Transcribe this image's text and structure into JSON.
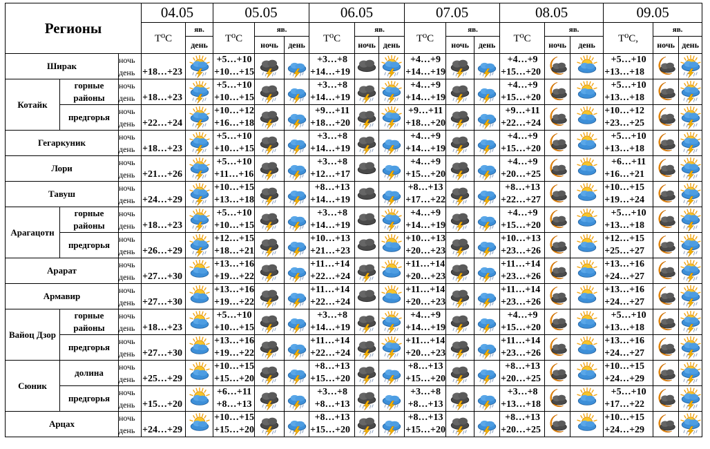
{
  "header": {
    "title": "Регионы",
    "dates": [
      "04.05",
      "05.05",
      "06.05",
      "07.05",
      "08.05",
      "09.05"
    ],
    "temp_labels": [
      "T⁰C",
      "T⁰C",
      "T⁰C",
      "T⁰C",
      "T⁰C",
      "T⁰C,"
    ],
    "phen_label": "яв.",
    "night": "ночь",
    "day": "день"
  },
  "row_labels": {
    "night": "ночь",
    "day": "день"
  },
  "regions": [
    {
      "name": "Ширак",
      "subs": [
        {
          "name": ""
        }
      ]
    },
    {
      "name": "Котайк",
      "subs": [
        {
          "name": "горные районы"
        },
        {
          "name": "предгорья"
        }
      ]
    },
    {
      "name": "Гегаркуник",
      "subs": [
        {
          "name": ""
        }
      ]
    },
    {
      "name": "Лори",
      "subs": [
        {
          "name": ""
        }
      ]
    },
    {
      "name": "Тавуш",
      "subs": [
        {
          "name": ""
        }
      ]
    },
    {
      "name": "Арагацотн",
      "subs": [
        {
          "name": "горные районы"
        },
        {
          "name": "предгорья"
        }
      ]
    },
    {
      "name": "Арарат",
      "subs": [
        {
          "name": ""
        }
      ]
    },
    {
      "name": "Армавир",
      "subs": [
        {
          "name": ""
        }
      ]
    },
    {
      "name": "Вайоц Дзор",
      "subs": [
        {
          "name": "горные районы"
        },
        {
          "name": "предгорья"
        }
      ]
    },
    {
      "name": "Сюник",
      "subs": [
        {
          "name": "долина"
        },
        {
          "name": "предгорья"
        }
      ]
    },
    {
      "name": "Арцах",
      "subs": [
        {
          "name": ""
        }
      ]
    }
  ],
  "rows": [
    {
      "d04": {
        "day": "+18…+23",
        "icon": "sun-storm-icon"
      },
      "days": [
        {
          "night": "+5…+10",
          "day": "+10…+15",
          "icons": [
            "storm-cloud-icon",
            "blue-storm-icon"
          ]
        },
        {
          "night": "+3…+8",
          "day": "+14…+19",
          "icons": [
            "dark-cloud-icon",
            "sun-storm-icon"
          ]
        },
        {
          "night": "+4…+9",
          "day": "+14…+19",
          "icons": [
            "storm-cloud-icon",
            "blue-storm-icon"
          ]
        },
        {
          "night": "+4…+9",
          "day": "+15…+20",
          "icons": [
            "moon-cloud-icon",
            "sun-cloud-icon"
          ]
        },
        {
          "night": "+5…+10",
          "day": "+13…+18",
          "icons": [
            "moon-cloud-icon",
            "sun-storm-icon"
          ]
        }
      ]
    },
    {
      "d04": {
        "day": "+18…+23",
        "icon": "sun-storm-icon"
      },
      "days": [
        {
          "night": "+5…+10",
          "day": "+10…+15",
          "icons": [
            "storm-cloud-icon",
            "blue-storm-icon"
          ]
        },
        {
          "night": "+3…+8",
          "day": "+14…+19",
          "icons": [
            "storm-cloud-icon",
            "sun-storm-icon"
          ]
        },
        {
          "night": "+4…+9",
          "day": "+14…+19",
          "icons": [
            "storm-cloud-icon",
            "blue-storm-icon"
          ]
        },
        {
          "night": "+4…+9",
          "day": "+15…+20",
          "icons": [
            "moon-cloud-icon",
            "sun-cloud-icon"
          ]
        },
        {
          "night": "+5…+10",
          "day": "+13…+18",
          "icons": [
            "moon-cloud-icon",
            "sun-storm-icon"
          ]
        }
      ]
    },
    {
      "d04": {
        "day": "+22…+24",
        "icon": "sun-storm-icon"
      },
      "days": [
        {
          "night": "+10…+12",
          "day": "+16…+18",
          "icons": [
            "storm-cloud-icon",
            "blue-storm-icon"
          ]
        },
        {
          "night": "+9…+11",
          "day": "+18…+20",
          "icons": [
            "storm-cloud-icon",
            "sun-storm-icon"
          ]
        },
        {
          "night": "+9…+11",
          "day": "+18…+20",
          "icons": [
            "storm-cloud-icon",
            "blue-storm-icon"
          ]
        },
        {
          "night": "+9…+11",
          "day": "+22…+24",
          "icons": [
            "moon-cloud-icon",
            "sun-cloud-icon"
          ]
        },
        {
          "night": "+10…+12",
          "day": "+23…+25",
          "icons": [
            "moon-cloud-icon",
            "sun-storm-icon"
          ]
        }
      ]
    },
    {
      "d04": {
        "day": "+18…+23",
        "icon": "sun-storm-icon"
      },
      "days": [
        {
          "night": "+5…+10",
          "day": "+10…+15",
          "icons": [
            "storm-cloud-icon",
            "blue-storm-icon"
          ]
        },
        {
          "night": "+3…+8",
          "day": "+14…+19",
          "icons": [
            "storm-cloud-icon",
            "blue-storm-icon"
          ]
        },
        {
          "night": "+4…+9",
          "day": "+14…+19",
          "icons": [
            "storm-cloud-icon",
            "blue-storm-icon"
          ]
        },
        {
          "night": "+4…+9",
          "day": "+15…+20",
          "icons": [
            "moon-cloud-icon",
            "sun-cloud-icon"
          ]
        },
        {
          "night": "+5…+10",
          "day": "+13…+18",
          "icons": [
            "moon-cloud-icon",
            "sun-storm-icon"
          ]
        }
      ]
    },
    {
      "d04": {
        "day": "+21…+26",
        "icon": "sun-storm-icon"
      },
      "days": [
        {
          "night": "+5…+10",
          "day": "+11…+16",
          "icons": [
            "storm-cloud-icon",
            "blue-storm-icon"
          ]
        },
        {
          "night": "+3…+8",
          "day": "+12…+17",
          "icons": [
            "dark-cloud-icon",
            "blue-storm-icon"
          ]
        },
        {
          "night": "+4…+9",
          "day": "+15…+20",
          "icons": [
            "storm-cloud-icon",
            "blue-storm-icon"
          ]
        },
        {
          "night": "+4…+9",
          "day": "+20…+25",
          "icons": [
            "moon-cloud-icon",
            "sun-cloud-icon"
          ]
        },
        {
          "night": "+6…+11",
          "day": "+16…+21",
          "icons": [
            "moon-cloud-icon",
            "sun-storm-icon"
          ]
        }
      ]
    },
    {
      "d04": {
        "day": "+24…+29",
        "icon": "sun-storm-icon"
      },
      "days": [
        {
          "night": "+10…+15",
          "day": "+13…+18",
          "icons": [
            "storm-cloud-icon",
            "blue-storm-icon"
          ]
        },
        {
          "night": "+8…+13",
          "day": "+14…+19",
          "icons": [
            "dark-cloud-icon",
            "blue-storm-icon"
          ]
        },
        {
          "night": "+8…+13",
          "day": "+17…+22",
          "icons": [
            "storm-cloud-icon",
            "blue-storm-icon"
          ]
        },
        {
          "night": "+8…+13",
          "day": "+22…+27",
          "icons": [
            "moon-cloud-icon",
            "sun-cloud-icon"
          ]
        },
        {
          "night": "+10…+15",
          "day": "+19…+24",
          "icons": [
            "moon-cloud-icon",
            "sun-storm-icon"
          ]
        }
      ]
    },
    {
      "d04": {
        "day": "+18…+23",
        "icon": "sun-storm-icon"
      },
      "days": [
        {
          "night": "+5…+10",
          "day": "+10…+15",
          "icons": [
            "storm-cloud-icon",
            "blue-storm-icon"
          ]
        },
        {
          "night": "+3…+8",
          "day": "+14…+19",
          "icons": [
            "dark-cloud-icon",
            "sun-storm-icon"
          ]
        },
        {
          "night": "+4…+9",
          "day": "+14…+19",
          "icons": [
            "storm-cloud-icon",
            "blue-storm-icon"
          ]
        },
        {
          "night": "+4…+9",
          "day": "+15…+20",
          "icons": [
            "moon-cloud-icon",
            "sun-cloud-icon"
          ]
        },
        {
          "night": "+5…+10",
          "day": "+13…+18",
          "icons": [
            "moon-cloud-icon",
            "sun-storm-icon"
          ]
        }
      ]
    },
    {
      "d04": {
        "day": "+26…+29",
        "icon": "sun-storm-icon"
      },
      "days": [
        {
          "night": "+12…+15",
          "day": "+18…+21",
          "icons": [
            "storm-cloud-icon",
            "blue-storm-icon"
          ]
        },
        {
          "night": "+10…+13",
          "day": "+21…+23",
          "icons": [
            "dark-cloud-icon",
            "sun-cloud-icon"
          ]
        },
        {
          "night": "+10…+13",
          "day": "+20…+23",
          "icons": [
            "storm-cloud-icon",
            "blue-storm-icon"
          ]
        },
        {
          "night": "+10…+13",
          "day": "+23…+26",
          "icons": [
            "moon-cloud-icon",
            "sun-cloud-icon"
          ]
        },
        {
          "night": "+12…+15",
          "day": "+25…+27",
          "icons": [
            "moon-cloud-icon",
            "sun-storm-icon"
          ]
        }
      ]
    },
    {
      "d04": {
        "day": "+27…+30",
        "icon": "sun-cloud-icon"
      },
      "days": [
        {
          "night": "+13…+16",
          "day": "+19…+22",
          "icons": [
            "storm-cloud-icon",
            "blue-storm-icon"
          ]
        },
        {
          "night": "+11…+14",
          "day": "+22…+24",
          "icons": [
            "storm-cloud-icon",
            "sun-cloud-icon"
          ]
        },
        {
          "night": "+11…+14",
          "day": "+20…+23",
          "icons": [
            "storm-cloud-icon",
            "blue-storm-icon"
          ]
        },
        {
          "night": "+11…+14",
          "day": "+23…+26",
          "icons": [
            "moon-cloud-icon",
            "sun-cloud-icon"
          ]
        },
        {
          "night": "+13…+16",
          "day": "+24…+27",
          "icons": [
            "moon-cloud-icon",
            "sun-storm-icon"
          ]
        }
      ]
    },
    {
      "d04": {
        "day": "+27…+30",
        "icon": "sun-cloud-icon"
      },
      "days": [
        {
          "night": "+13…+16",
          "day": "+19…+22",
          "icons": [
            "storm-cloud-icon",
            "blue-storm-icon"
          ]
        },
        {
          "night": "+11…+14",
          "day": "+22…+24",
          "icons": [
            "dark-cloud-icon",
            "sun-cloud-icon"
          ]
        },
        {
          "night": "+11…+14",
          "day": "+20…+23",
          "icons": [
            "storm-cloud-icon",
            "blue-storm-icon"
          ]
        },
        {
          "night": "+11…+14",
          "day": "+23…+26",
          "icons": [
            "moon-cloud-icon",
            "sun-cloud-icon"
          ]
        },
        {
          "night": "+13…+16",
          "day": "+24…+27",
          "icons": [
            "moon-cloud-icon",
            "sun-storm-icon"
          ]
        }
      ]
    },
    {
      "d04": {
        "day": "+18…+23",
        "icon": "sun-cloud-icon"
      },
      "days": [
        {
          "night": "+5…+10",
          "day": "+10…+15",
          "icons": [
            "storm-cloud-icon",
            "blue-storm-icon"
          ]
        },
        {
          "night": "+3…+8",
          "day": "+14…+19",
          "icons": [
            "storm-cloud-icon",
            "sun-storm-icon"
          ]
        },
        {
          "night": "+4…+9",
          "day": "+14…+19",
          "icons": [
            "storm-cloud-icon",
            "blue-storm-icon"
          ]
        },
        {
          "night": "+4…+9",
          "day": "+15…+20",
          "icons": [
            "moon-cloud-icon",
            "sun-cloud-icon"
          ]
        },
        {
          "night": "+5…+10",
          "day": "+13…+18",
          "icons": [
            "moon-cloud-icon",
            "sun-storm-icon"
          ]
        }
      ]
    },
    {
      "d04": {
        "day": "+27…+30",
        "icon": "sun-cloud-icon"
      },
      "days": [
        {
          "night": "+13…+16",
          "day": "+19…+22",
          "icons": [
            "storm-cloud-icon",
            "blue-storm-icon"
          ]
        },
        {
          "night": "+11…+14",
          "day": "+22…+24",
          "icons": [
            "storm-cloud-icon",
            "sun-storm-icon"
          ]
        },
        {
          "night": "+11…+14",
          "day": "+20…+23",
          "icons": [
            "storm-cloud-icon",
            "blue-storm-icon"
          ]
        },
        {
          "night": "+11…+14",
          "day": "+23…+26",
          "icons": [
            "moon-cloud-icon",
            "sun-cloud-icon"
          ]
        },
        {
          "night": "+13…+16",
          "day": "+24…+27",
          "icons": [
            "moon-cloud-icon",
            "sun-storm-icon"
          ]
        }
      ]
    },
    {
      "d04": {
        "day": "+25…+29",
        "icon": "sun-cloud-icon"
      },
      "days": [
        {
          "night": "+10…+15",
          "day": "+15…+20",
          "icons": [
            "storm-cloud-icon",
            "blue-storm-icon"
          ]
        },
        {
          "night": "+8…+13",
          "day": "+15…+20",
          "icons": [
            "storm-cloud-icon",
            "blue-storm-icon"
          ]
        },
        {
          "night": "+8…+13",
          "day": "+15…+20",
          "icons": [
            "storm-cloud-icon",
            "blue-storm-icon"
          ]
        },
        {
          "night": "+8…+13",
          "day": "+20…+25",
          "icons": [
            "moon-cloud-icon",
            "sun-cloud-icon"
          ]
        },
        {
          "night": "+10…+15",
          "day": "+24…+29",
          "icons": [
            "moon-cloud-icon",
            "sun-storm-icon"
          ]
        }
      ]
    },
    {
      "d04": {
        "day": "+15…+20",
        "icon": "sun-cloud-icon"
      },
      "days": [
        {
          "night": "+6…+11",
          "day": "+8…+13",
          "icons": [
            "storm-cloud-icon",
            "blue-storm-icon"
          ]
        },
        {
          "night": "+3…+8",
          "day": "+8…+13",
          "icons": [
            "storm-cloud-icon",
            "blue-storm-icon"
          ]
        },
        {
          "night": "+3…+8",
          "day": "+8…+13",
          "icons": [
            "storm-cloud-icon",
            "blue-storm-icon"
          ]
        },
        {
          "night": "+3…+8",
          "day": "+13…+18",
          "icons": [
            "moon-cloud-icon",
            "sun-cloud-icon"
          ]
        },
        {
          "night": "+5…+10",
          "day": "+17…+22",
          "icons": [
            "moon-cloud-icon",
            "sun-storm-icon"
          ]
        }
      ]
    },
    {
      "d04": {
        "day": "+24…+29",
        "icon": "sun-cloud-icon"
      },
      "days": [
        {
          "night": "+10…+15",
          "day": "+15…+20",
          "icons": [
            "storm-cloud-icon",
            "blue-storm-icon"
          ]
        },
        {
          "night": "+8…+13",
          "day": "+15…+20",
          "icons": [
            "storm-cloud-icon",
            "blue-storm-icon"
          ]
        },
        {
          "night": "+8…+13",
          "day": "+15…+20",
          "icons": [
            "storm-cloud-icon",
            "blue-storm-icon"
          ]
        },
        {
          "night": "+8…+13",
          "day": "+20…+25",
          "icons": [
            "moon-cloud-icon",
            "sun-cloud-icon"
          ]
        },
        {
          "night": "+10…+15",
          "day": "+24…+29",
          "icons": [
            "moon-cloud-icon",
            "sun-storm-icon"
          ]
        }
      ]
    }
  ]
}
